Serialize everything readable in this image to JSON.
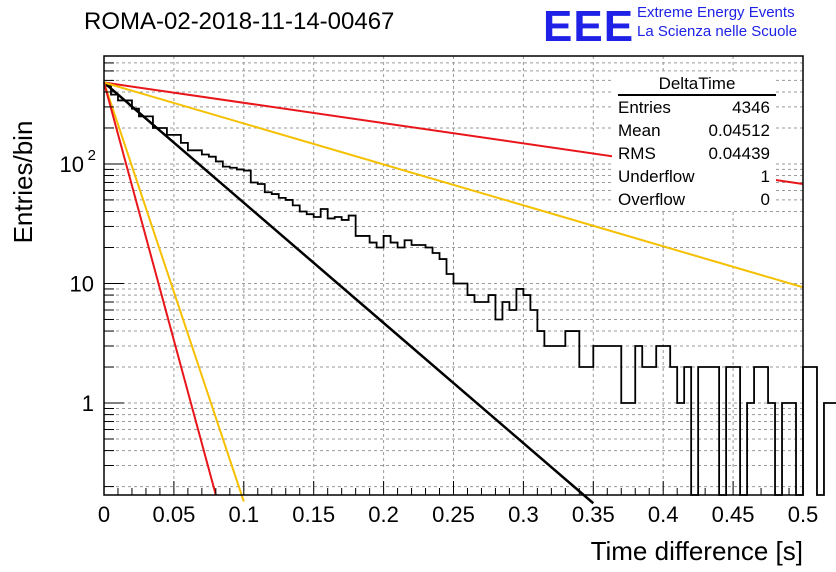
{
  "title": "ROMA-02-2018-11-14-00467",
  "logo": {
    "mark": "EEE",
    "line1": "Extreme Energy Events",
    "line2": "La Scienza nelle Scuole",
    "color": "#1f22e6"
  },
  "stats_box": {
    "name": "DeltaTime",
    "rows": [
      {
        "label": "Entries",
        "value": "4346"
      },
      {
        "label": "Mean",
        "value": "0.04512"
      },
      {
        "label": "RMS",
        "value": "0.04439"
      },
      {
        "label": "Underflow",
        "value": "1"
      },
      {
        "label": "Overflow",
        "value": "0"
      }
    ]
  },
  "chart_data": {
    "type": "bar",
    "xlabel": "Time difference [s]",
    "ylabel": "Entries/bin",
    "xlim": [
      0,
      0.5
    ],
    "ylim": [
      0.17,
      800
    ],
    "yscale": "log",
    "grid": true,
    "x_ticks": [
      "0",
      "0.05",
      "0.1",
      "0.15",
      "0.2",
      "0.25",
      "0.3",
      "0.35",
      "0.4",
      "0.45",
      "0.5"
    ],
    "y_ticks": [
      {
        "value": 1,
        "label": "1"
      },
      {
        "value": 10,
        "label": "10"
      },
      {
        "value": 100,
        "label": "10",
        "exp": "2"
      }
    ],
    "histogram": {
      "bin_width": 0.005,
      "color": "#000000",
      "values": [
        450,
        380,
        340,
        340,
        290,
        250,
        250,
        200,
        200,
        175,
        175,
        150,
        130,
        130,
        120,
        115,
        105,
        95,
        93,
        90,
        88,
        70,
        68,
        58,
        56,
        52,
        50,
        45,
        40,
        38,
        36,
        42,
        35,
        36,
        34,
        37,
        25,
        25,
        22,
        20,
        25,
        22,
        20,
        23,
        21,
        21,
        20,
        18,
        16,
        12,
        10,
        10,
        8,
        7,
        7,
        8,
        5,
        7,
        6,
        9,
        8,
        6,
        4,
        3,
        3,
        3,
        4,
        4,
        2,
        2,
        3,
        3,
        3,
        3,
        1,
        1,
        3,
        2,
        2,
        3,
        3,
        2,
        1,
        2,
        0,
        2,
        2,
        2,
        0,
        2,
        2,
        0,
        1,
        2,
        2,
        1,
        0,
        1,
        1,
        0,
        2,
        2,
        0,
        1,
        1,
        1,
        0,
        1,
        0,
        1,
        1,
        0,
        0,
        0,
        0,
        0,
        0,
        0,
        0,
        0,
        0,
        0,
        0,
        0,
        0,
        0,
        0,
        0,
        0,
        0,
        0,
        0,
        0,
        0,
        0,
        0,
        0,
        0,
        0,
        0,
        0,
        0,
        0,
        0,
        0,
        0,
        0,
        0,
        0,
        0,
        0,
        0,
        0,
        0,
        0,
        0,
        0,
        0,
        0,
        0
      ]
    },
    "series": [
      {
        "color": "#000000",
        "width": 2.5,
        "x": [
          0,
          0.35
        ],
        "y": [
          480,
          0.145
        ]
      },
      {
        "color": "#e8161b",
        "width": 2,
        "x": [
          0,
          0.5
        ],
        "y": [
          480,
          68
        ]
      },
      {
        "color": "#f5c000",
        "width": 2,
        "x": [
          0,
          0.5
        ],
        "y": [
          480,
          9.3
        ]
      },
      {
        "color": "#f5c000",
        "width": 2,
        "x": [
          0,
          0.1
        ],
        "y": [
          480,
          0.15
        ]
      },
      {
        "color": "#e8161b",
        "width": 2,
        "x": [
          0,
          0.08
        ],
        "y": [
          480,
          0.17
        ]
      }
    ]
  }
}
